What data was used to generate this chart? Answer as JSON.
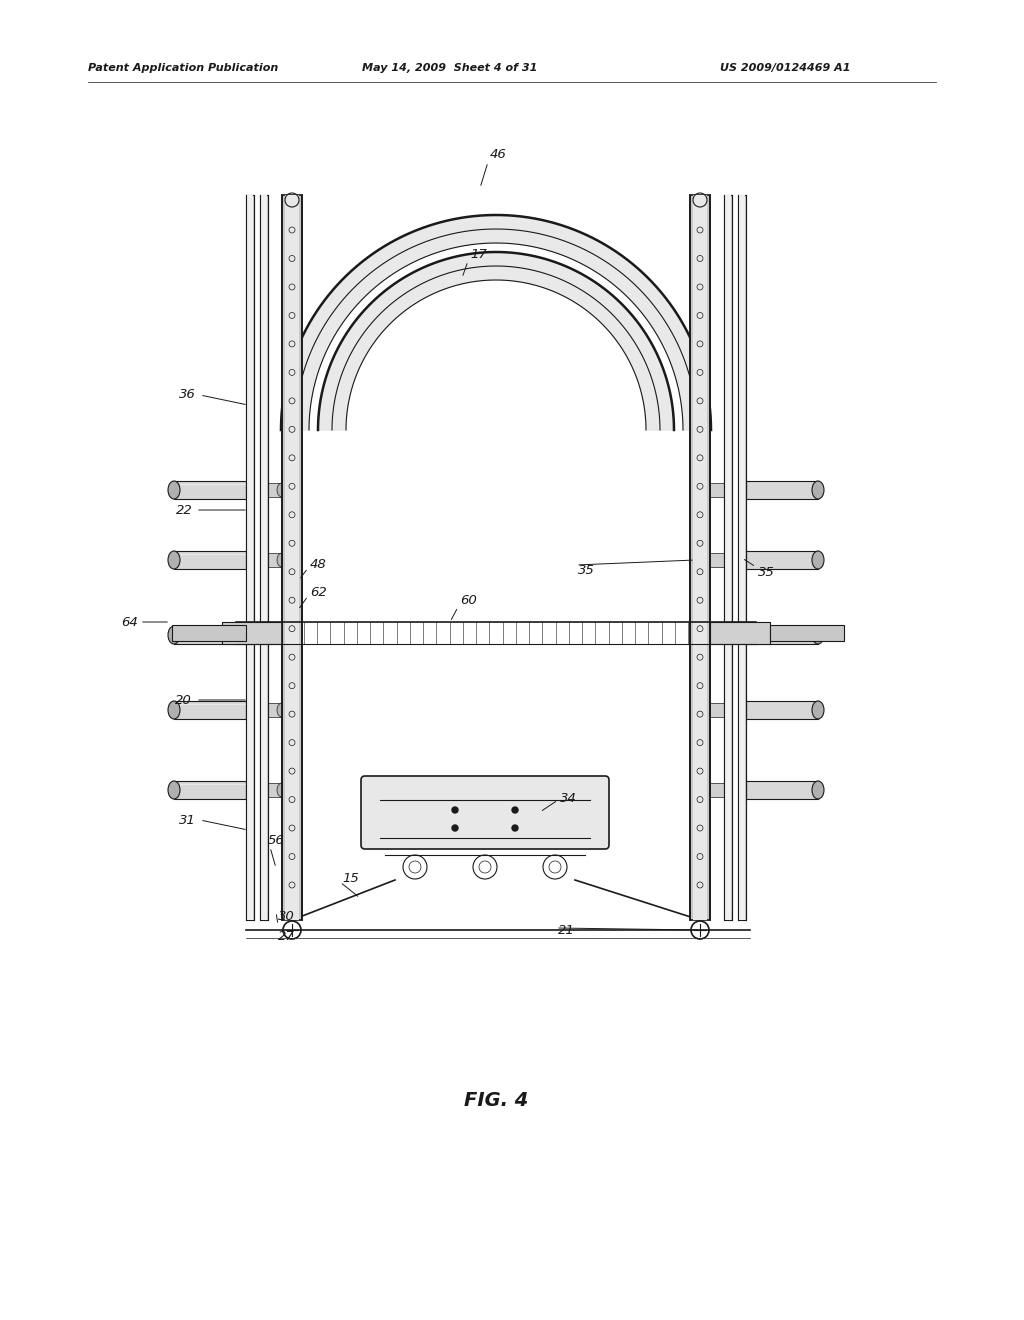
{
  "bg_color": "#ffffff",
  "header_left": "Patent Application Publication",
  "header_mid": "May 14, 2009  Sheet 4 of 31",
  "header_right": "US 2009/0124469 A1",
  "fig_label": "FIG. 4",
  "col": "#1a1a1a",
  "post_color": "#d8d8d8",
  "post_dark": "#a0a0a0",
  "post_light": "#eeeeee",
  "peg_color": "#c8c8c8",
  "bar_color": "#b0b0b0",
  "bench_color": "#e0e0e0"
}
